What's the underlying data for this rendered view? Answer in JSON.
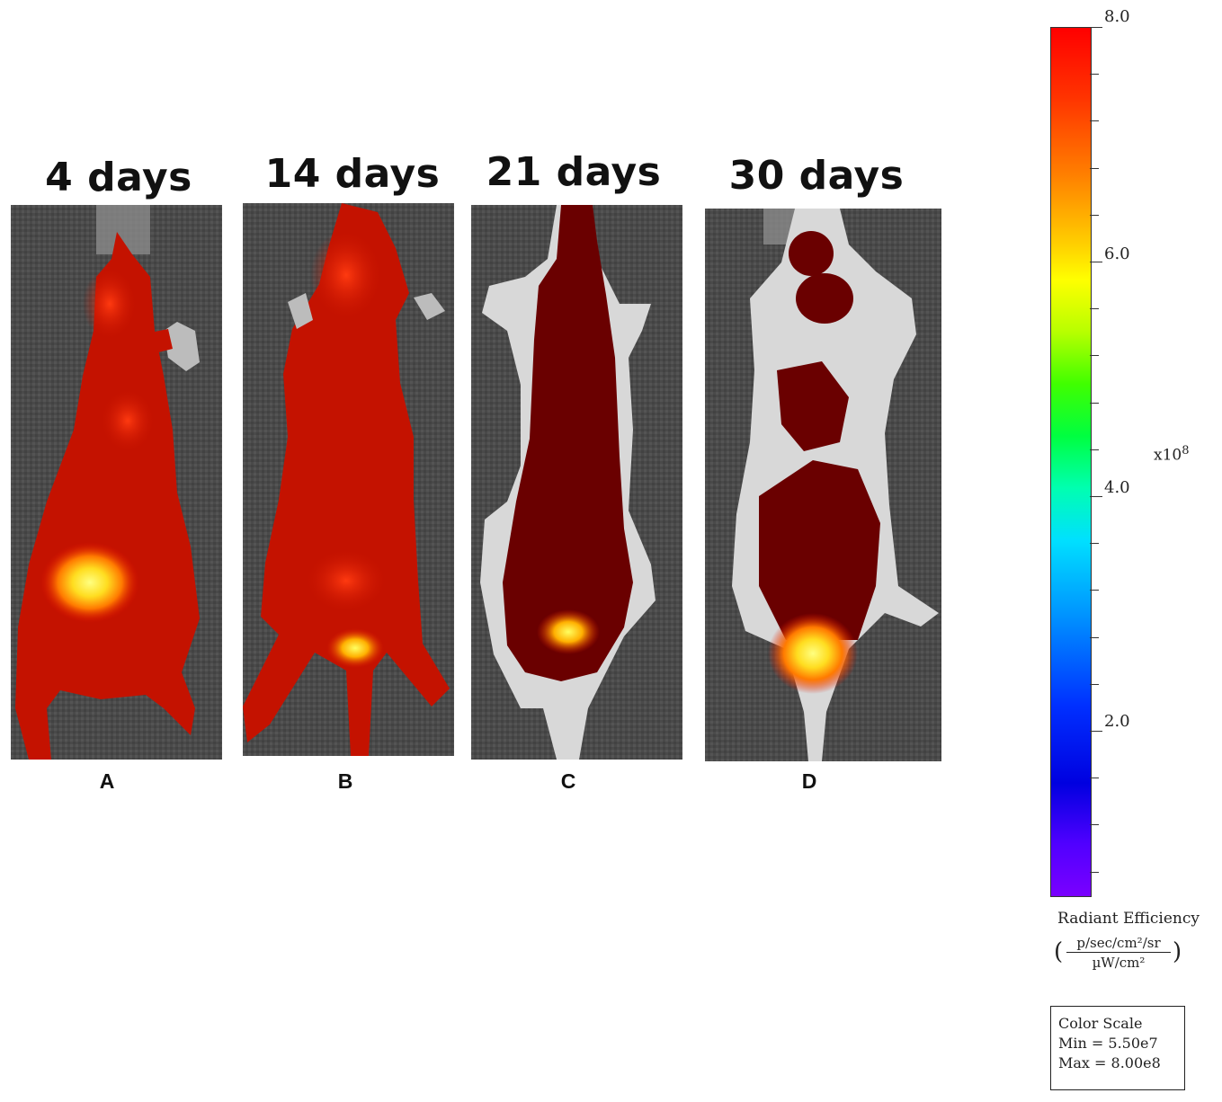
{
  "panels": [
    {
      "title": "4 days",
      "letter": "A"
    },
    {
      "title": "14 days",
      "letter": "B"
    },
    {
      "title": "21 days",
      "letter": "C"
    },
    {
      "title": "30 days",
      "letter": "D"
    }
  ],
  "colorbar": {
    "ticks": [
      "8.0",
      "6.0",
      "4.0",
      "2.0"
    ],
    "multiplier": "x10",
    "multiplier_exp": "8",
    "title": "Radiant Efficiency",
    "unit_numerator": "p/sec/cm²/sr",
    "unit_denominator": "µW/cm²",
    "paren_open": "(",
    "paren_close": ")"
  },
  "scale_box": {
    "title": "Color Scale",
    "min": "Min = 5.50e7",
    "max": "Max = 8.00e8"
  }
}
